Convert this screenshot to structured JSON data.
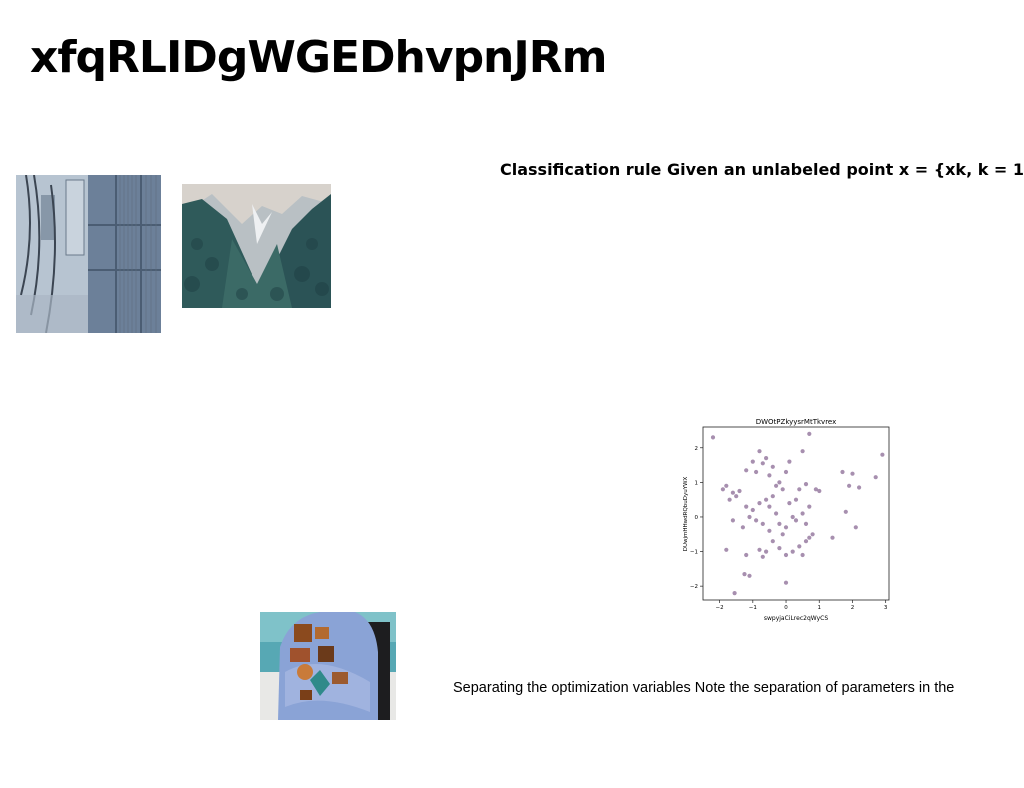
{
  "page": {
    "title": "xfqRLIDgWGEDhvpnJRm",
    "heading": "Classification rule Given an unlabeled point x = {xk, k = 1,",
    "paragraph": "Separating the optimization variables Note the separation of parameters in the"
  },
  "images": [
    {
      "name": "building-wall-photo",
      "subject": "concrete wall with electrical boxes and window"
    },
    {
      "name": "mountain-photo",
      "subject": "forested mountain peaks"
    },
    {
      "name": "jacket-photo",
      "subject": "person in blue tie-dye jacket with patches"
    }
  ],
  "chart_data": {
    "type": "scatter",
    "title": "DWOtPZkyysrMtTkvrex",
    "xlabel": "swpyjaCiLrec2qWyCS",
    "ylabel": "DUwjmHHwdRQbuDyuYWX",
    "xlim": [
      -2.5,
      3.1
    ],
    "ylim": [
      -2.4,
      2.6
    ],
    "xticks": [
      -2,
      -1,
      0,
      1,
      2,
      3
    ],
    "yticks": [
      -2,
      -1,
      0,
      1,
      2
    ],
    "grid": false,
    "color": "#8a6a94",
    "points": [
      [
        -2.2,
        2.3
      ],
      [
        -1.9,
        0.8
      ],
      [
        -1.8,
        0.9
      ],
      [
        -1.7,
        0.5
      ],
      [
        -1.6,
        0.7
      ],
      [
        -1.5,
        0.6
      ],
      [
        -1.4,
        0.75
      ],
      [
        -1.6,
        -0.1
      ],
      [
        -1.3,
        -0.3
      ],
      [
        -1.8,
        -0.95
      ],
      [
        -1.55,
        -2.2
      ],
      [
        -1.2,
        -1.1
      ],
      [
        -1.25,
        -1.65
      ],
      [
        -1.1,
        -1.7
      ],
      [
        -1.0,
        1.6
      ],
      [
        -1.2,
        1.35
      ],
      [
        -0.9,
        1.3
      ],
      [
        -0.8,
        1.9
      ],
      [
        -0.7,
        1.55
      ],
      [
        -0.6,
        1.7
      ],
      [
        -0.5,
        1.2
      ],
      [
        -0.4,
        1.45
      ],
      [
        -0.3,
        0.9
      ],
      [
        -0.2,
        1.0
      ],
      [
        -0.1,
        0.8
      ],
      [
        0.0,
        1.3
      ],
      [
        0.1,
        1.6
      ],
      [
        -1.0,
        0.2
      ],
      [
        -0.8,
        0.4
      ],
      [
        -0.6,
        0.5
      ],
      [
        -0.5,
        0.3
      ],
      [
        -0.3,
        0.1
      ],
      [
        -0.2,
        -0.2
      ],
      [
        0.0,
        -0.3
      ],
      [
        0.2,
        0.0
      ],
      [
        0.3,
        -0.1
      ],
      [
        0.5,
        0.1
      ],
      [
        0.6,
        -0.2
      ],
      [
        -0.9,
        -0.1
      ],
      [
        -0.7,
        -0.2
      ],
      [
        -0.5,
        -0.4
      ],
      [
        -0.4,
        -0.7
      ],
      [
        -0.2,
        -0.9
      ],
      [
        0.0,
        -1.1
      ],
      [
        0.2,
        -1.0
      ],
      [
        0.4,
        -0.85
      ],
      [
        0.6,
        -0.7
      ],
      [
        0.8,
        -0.5
      ],
      [
        0.7,
        -0.6
      ],
      [
        -0.6,
        -1.0
      ],
      [
        -0.7,
        -1.15
      ],
      [
        -0.8,
        -0.95
      ],
      [
        0.5,
        1.9
      ],
      [
        0.7,
        2.4
      ],
      [
        0.4,
        0.8
      ],
      [
        0.6,
        0.95
      ],
      [
        0.9,
        0.8
      ],
      [
        1.0,
        0.75
      ],
      [
        0.3,
        0.5
      ],
      [
        0.7,
        0.3
      ],
      [
        1.4,
        -0.6
      ],
      [
        1.7,
        1.3
      ],
      [
        1.8,
        0.15
      ],
      [
        1.9,
        0.9
      ],
      [
        2.0,
        1.25
      ],
      [
        2.1,
        -0.3
      ],
      [
        2.2,
        0.85
      ],
      [
        2.7,
        1.15
      ],
      [
        2.9,
        1.8
      ],
      [
        0.0,
        -1.9
      ],
      [
        -1.2,
        0.3
      ],
      [
        -1.1,
        0.0
      ],
      [
        -0.4,
        0.6
      ],
      [
        0.1,
        0.4
      ],
      [
        0.5,
        -1.1
      ],
      [
        -0.1,
        -0.5
      ]
    ]
  }
}
